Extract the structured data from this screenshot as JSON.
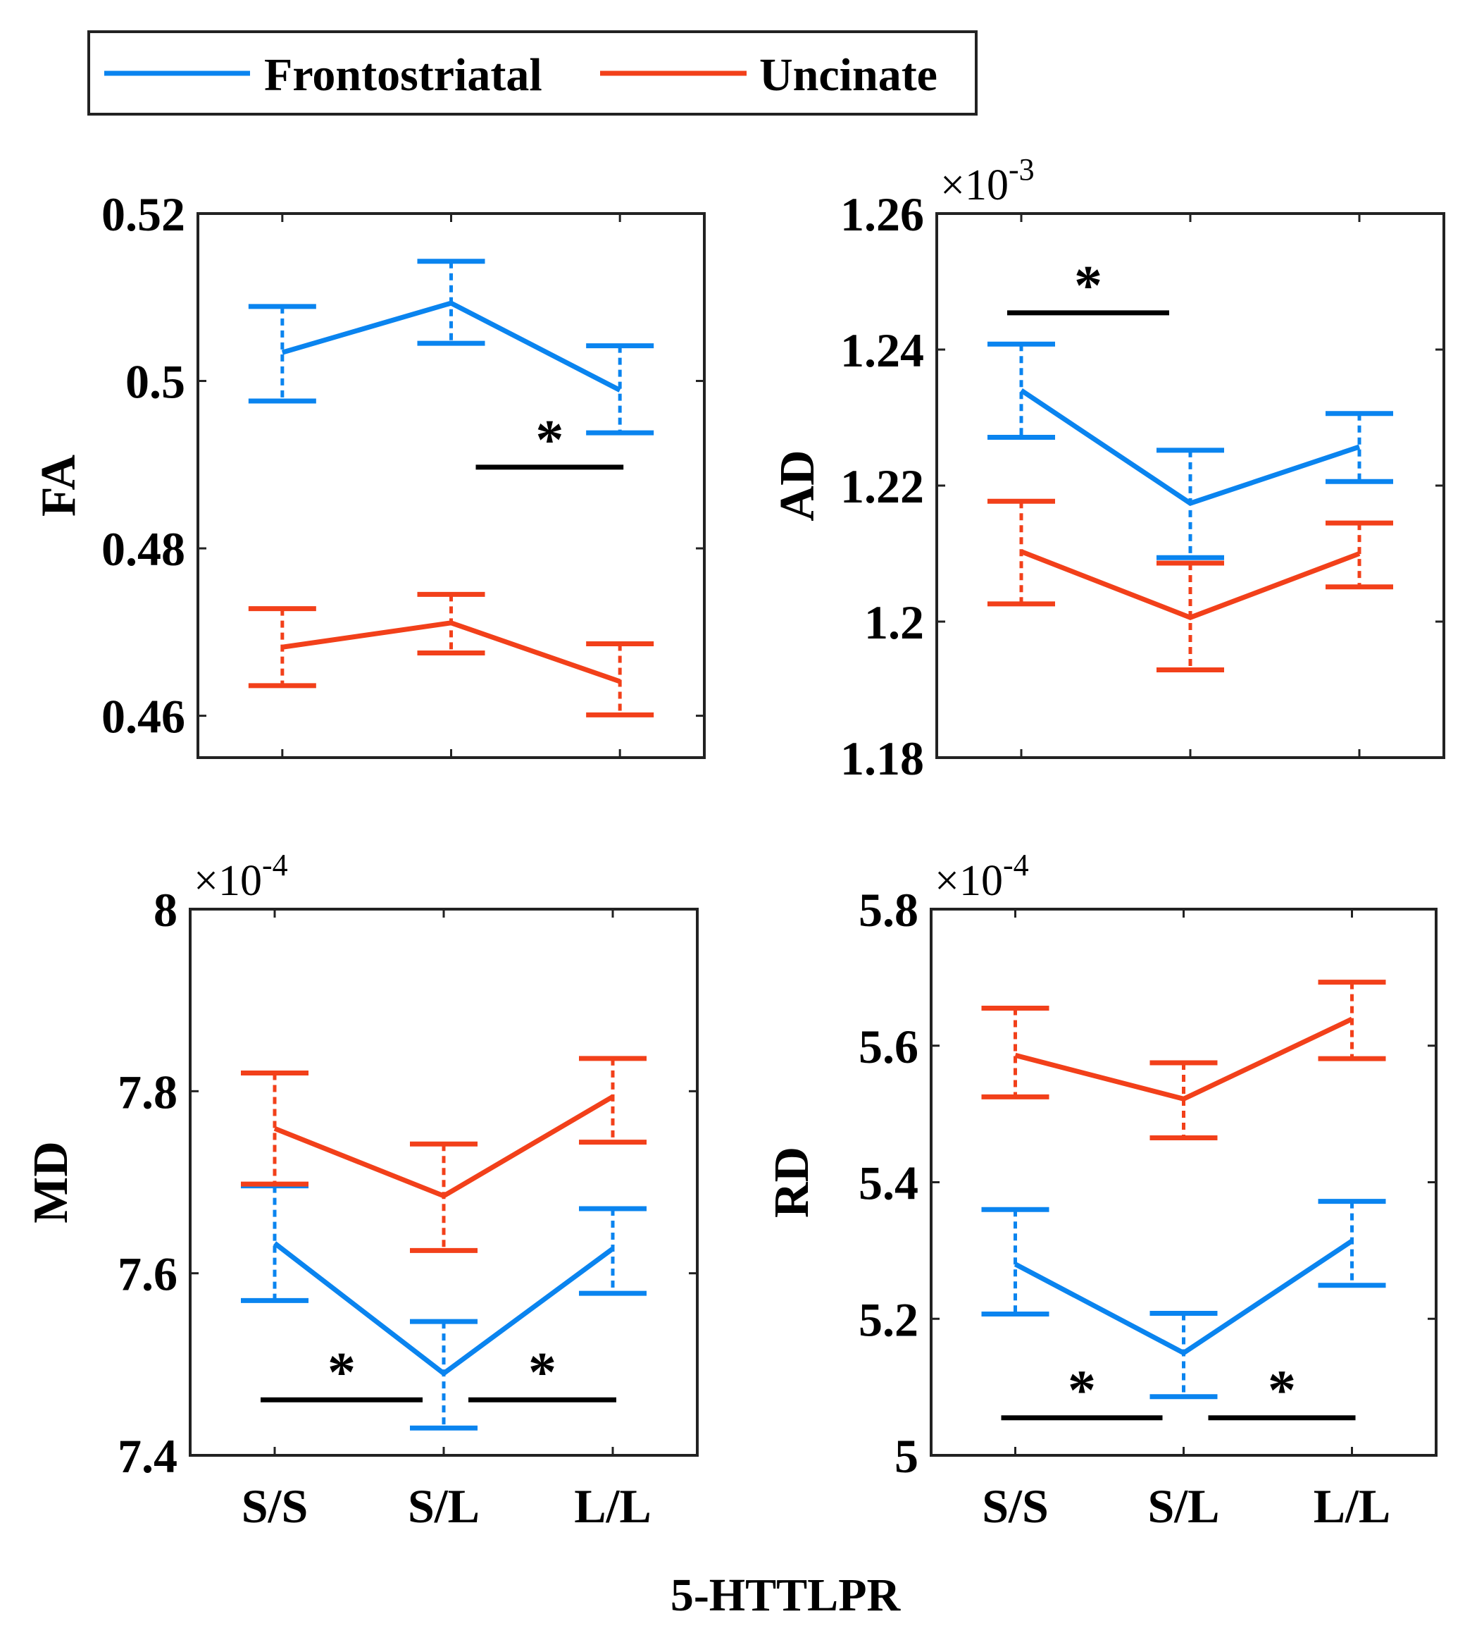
{
  "colors": {
    "Frontostriatal": "#0a84ef",
    "Uncinate": "#f2401a",
    "axis": "#222222"
  },
  "chart_data": {
    "type": "line",
    "legend": {
      "entries": [
        "Frontostriatal",
        "Uncinate"
      ],
      "placement": "top"
    },
    "xlabel": "5-HTTLPR",
    "categories": [
      "S/S",
      "S/L",
      "L/L"
    ],
    "panels": [
      {
        "ylabel": "FA",
        "exponent": "",
        "ylim": [
          0.455,
          0.52
        ],
        "yticks": [
          0.46,
          0.48,
          0.5,
          0.52
        ],
        "ytick_labels": [
          "0.46",
          "0.48",
          "0.5",
          "0.52"
        ],
        "series": [
          {
            "name": "Frontostriatal",
            "values": [
              0.5034,
              0.5093,
              0.4989
            ],
            "upper": [
              0.5089,
              0.5143,
              0.5042
            ],
            "lower": [
              0.4976,
              0.5045,
              0.4938
            ]
          },
          {
            "name": "Uncinate",
            "values": [
              0.4682,
              0.4711,
              0.4641
            ],
            "upper": [
              0.4728,
              0.4745,
              0.4686
            ],
            "lower": [
              0.4636,
              0.4675,
              0.4601
            ]
          }
        ],
        "significance": [
          {
            "from": "S/L",
            "to": "L/L",
            "y": 0.4897,
            "label": "*"
          }
        ]
      },
      {
        "ylabel": "AD",
        "exponent": "-3",
        "ylim": [
          1.18,
          1.26
        ],
        "yticks": [
          1.18,
          1.2,
          1.22,
          1.24,
          1.26
        ],
        "ytick_labels": [
          "1.18",
          "1.2",
          "1.22",
          "1.24",
          "1.26"
        ],
        "series": [
          {
            "name": "Frontostriatal",
            "values": [
              1.234,
              1.2174,
              1.2257
            ],
            "upper": [
              1.2408,
              1.2252,
              1.2306
            ],
            "lower": [
              1.2271,
              1.2094,
              1.2206
            ]
          },
          {
            "name": "Uncinate",
            "values": [
              1.2103,
              1.2006,
              1.21
            ],
            "upper": [
              1.2177,
              1.2086,
              1.2145
            ],
            "lower": [
              1.2026,
              1.1929,
              1.2051
            ]
          }
        ],
        "significance": [
          {
            "from": "S/S",
            "to": "S/L",
            "y": 1.2454,
            "label": "*"
          }
        ]
      },
      {
        "ylabel": "MD",
        "exponent": "-4",
        "ylim": [
          7.4,
          8.0
        ],
        "yticks": [
          7.4,
          7.6,
          7.8,
          8.0
        ],
        "ytick_labels": [
          "7.4",
          "7.6",
          "7.8",
          "8"
        ],
        "series": [
          {
            "name": "Frontostriatal",
            "values": [
              7.633,
              7.49,
              7.627
            ],
            "upper": [
              7.696,
              7.547,
              7.671
            ],
            "lower": [
              7.57,
              7.43,
              7.578
            ]
          },
          {
            "name": "Uncinate",
            "values": [
              7.759,
              7.685,
              7.794
            ],
            "upper": [
              7.82,
              7.742,
              7.836
            ],
            "lower": [
              7.698,
              7.625,
              7.744
            ]
          }
        ],
        "significance": [
          {
            "from": "S/S",
            "to": "S/L",
            "y": 7.461,
            "label": "*"
          },
          {
            "from": "S/L",
            "to": "L/L",
            "y": 7.461,
            "label": "*"
          }
        ]
      },
      {
        "ylabel": "RD",
        "exponent": "-4",
        "ylim": [
          5.0,
          5.8
        ],
        "yticks": [
          5.0,
          5.2,
          5.4,
          5.6,
          5.8
        ],
        "ytick_labels": [
          "5",
          "5.2",
          "5.4",
          "5.6",
          "5.8"
        ],
        "series": [
          {
            "name": "Frontostriatal",
            "values": [
              5.28,
              5.15,
              5.314
            ],
            "upper": [
              5.36,
              5.208,
              5.372
            ],
            "lower": [
              5.207,
              5.086,
              5.249
            ]
          },
          {
            "name": "Uncinate",
            "values": [
              5.586,
              5.522,
              5.639
            ],
            "upper": [
              5.655,
              5.575,
              5.693
            ],
            "lower": [
              5.525,
              5.465,
              5.581
            ]
          }
        ],
        "significance": [
          {
            "from": "S/S",
            "to": "S/L",
            "y": 5.055,
            "label": "*"
          },
          {
            "from": "S/L",
            "to": "L/L",
            "y": 5.055,
            "label": "*"
          }
        ]
      }
    ]
  }
}
